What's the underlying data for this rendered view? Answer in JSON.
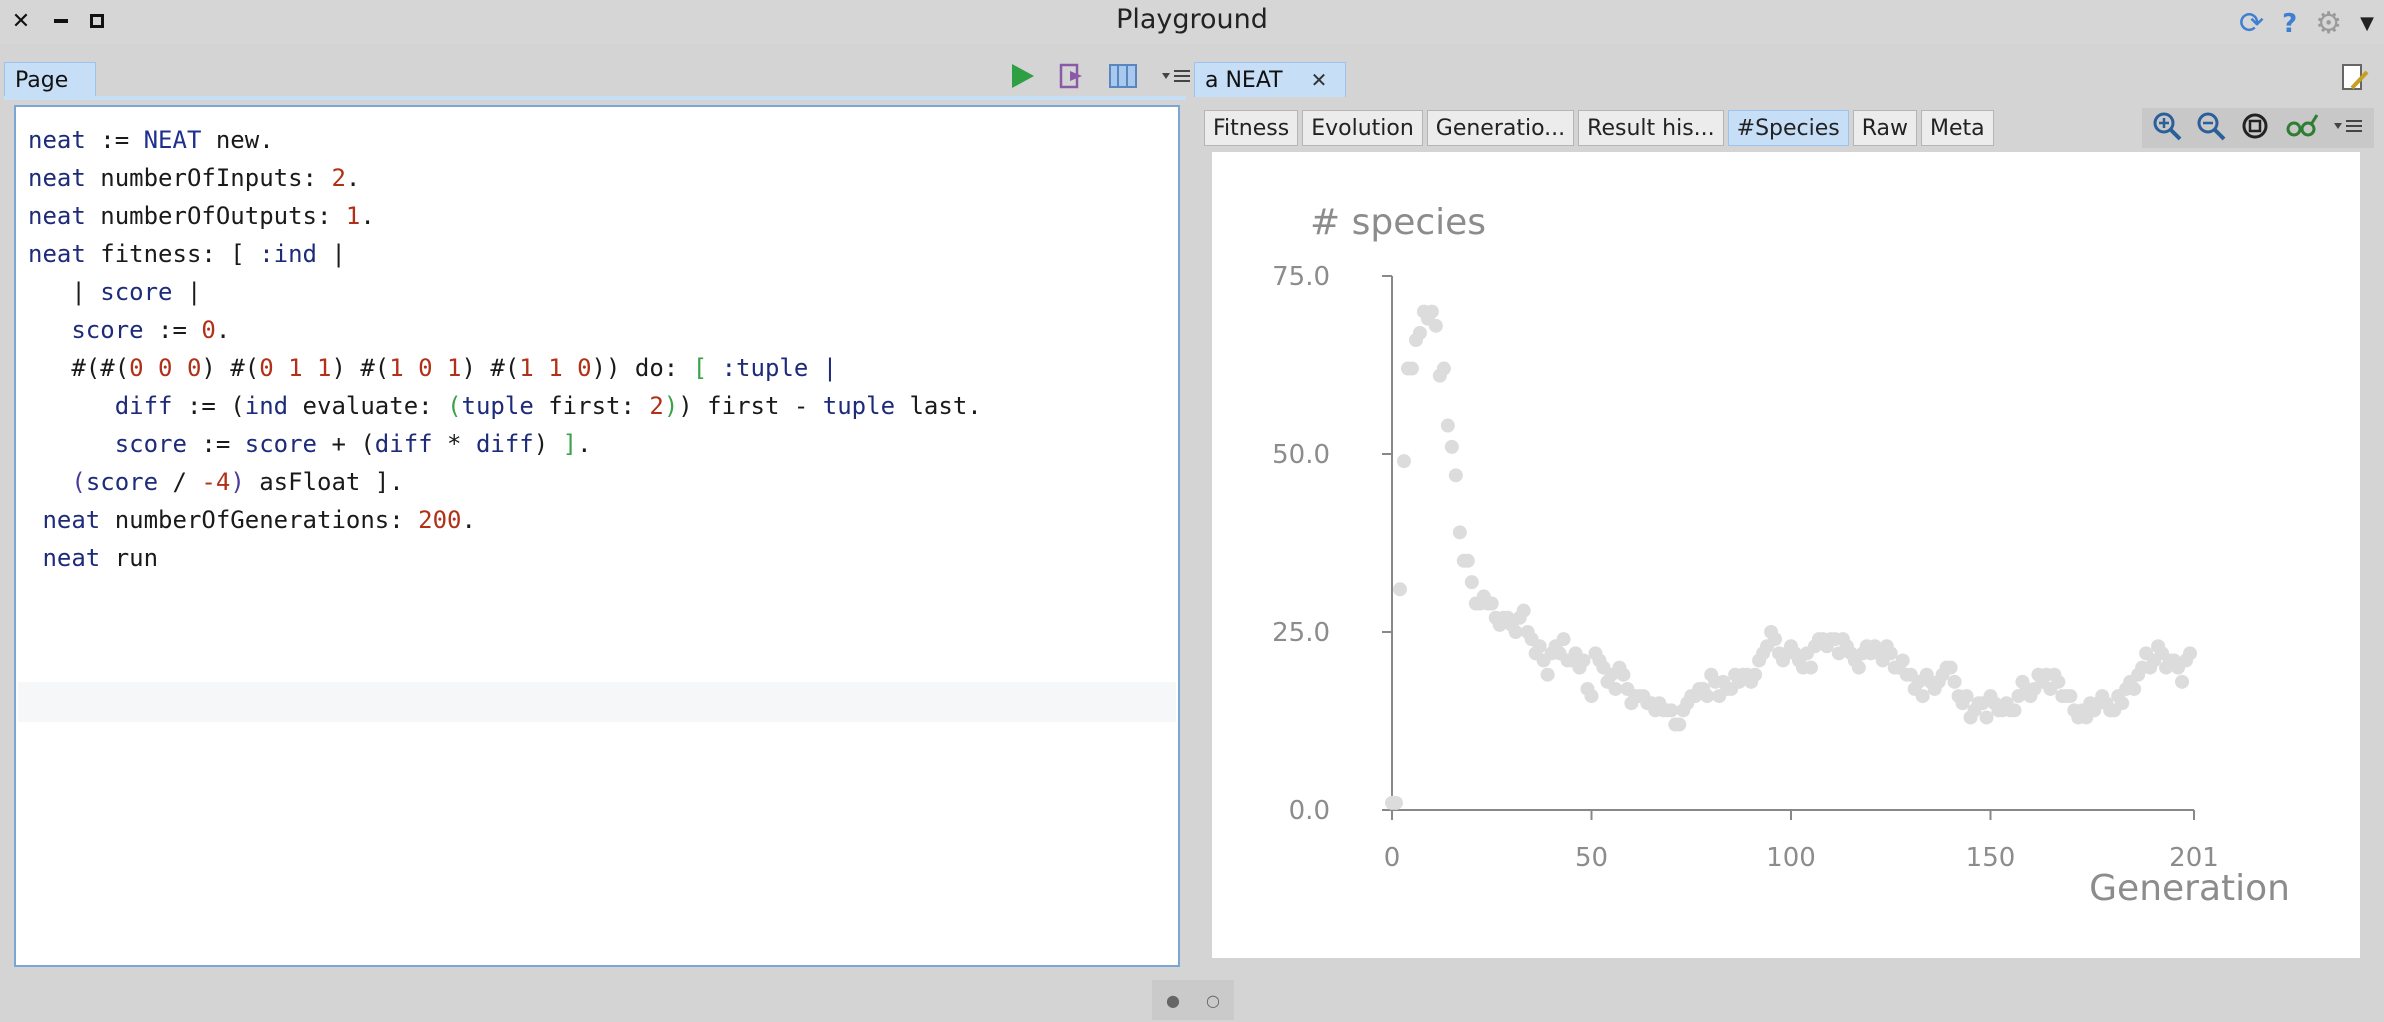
{
  "window": {
    "title": "Playground"
  },
  "left_pane": {
    "tab_label": "Page",
    "code_lines": [
      [
        {
          "t": "neat",
          "c": "v"
        },
        {
          "t": " := "
        },
        {
          "t": "NEAT",
          "c": "g"
        },
        {
          "t": " new."
        }
      ],
      [
        {
          "t": "neat",
          "c": "v"
        },
        {
          "t": " numberOfInputs: "
        },
        {
          "t": "2",
          "c": "n"
        },
        {
          "t": "."
        }
      ],
      [
        {
          "t": "neat",
          "c": "v"
        },
        {
          "t": " numberOfOutputs: "
        },
        {
          "t": "1",
          "c": "n"
        },
        {
          "t": "."
        }
      ],
      [
        {
          "t": "neat",
          "c": "v"
        },
        {
          "t": " fitness: [ "
        },
        {
          "t": ":ind",
          "c": "v"
        },
        {
          "t": " |"
        }
      ],
      [
        {
          "t": "   | "
        },
        {
          "t": "score",
          "c": "v"
        },
        {
          "t": " |"
        }
      ],
      [
        {
          "t": "   "
        },
        {
          "t": "score",
          "c": "v"
        },
        {
          "t": " := "
        },
        {
          "t": "0",
          "c": "n"
        },
        {
          "t": "."
        }
      ],
      [
        {
          "t": "   #(#("
        },
        {
          "t": "0 0 0",
          "c": "n"
        },
        {
          "t": ") #("
        },
        {
          "t": "0 1 1",
          "c": "n"
        },
        {
          "t": ") #("
        },
        {
          "t": "1 0 1",
          "c": "n"
        },
        {
          "t": ") #("
        },
        {
          "t": "1 1 0",
          "c": "n"
        },
        {
          "t": ")) do: "
        },
        {
          "t": "[",
          "c": "b"
        },
        {
          "t": " "
        },
        {
          "t": ":tuple",
          "c": "v"
        },
        {
          "t": " "
        },
        {
          "t": "|",
          "c": "v"
        }
      ],
      [
        {
          "t": "      "
        },
        {
          "t": "diff",
          "c": "v"
        },
        {
          "t": " := ("
        },
        {
          "t": "ind",
          "c": "v"
        },
        {
          "t": " evaluate: "
        },
        {
          "t": "(",
          "c": "b"
        },
        {
          "t": "tuple",
          "c": "v"
        },
        {
          "t": " first: "
        },
        {
          "t": "2",
          "c": "n"
        },
        {
          "t": ")",
          "c": "b"
        },
        {
          "t": ") first - "
        },
        {
          "t": "tuple",
          "c": "v"
        },
        {
          "t": " last."
        }
      ],
      [
        {
          "t": "      "
        },
        {
          "t": "score",
          "c": "v"
        },
        {
          "t": " := "
        },
        {
          "t": "score",
          "c": "v"
        },
        {
          "t": " + ("
        },
        {
          "t": "diff",
          "c": "v"
        },
        {
          "t": " * "
        },
        {
          "t": "diff",
          "c": "v"
        },
        {
          "t": ") "
        },
        {
          "t": "]",
          "c": "b"
        },
        {
          "t": "."
        }
      ],
      [
        {
          "t": "   "
        },
        {
          "t": "(",
          "c": "p"
        },
        {
          "t": "score",
          "c": "v"
        },
        {
          "t": " / "
        },
        {
          "t": "-4",
          "c": "n"
        },
        {
          "t": ")",
          "c": "p"
        },
        {
          "t": " asFloat ]."
        }
      ],
      [
        {
          "t": " "
        },
        {
          "t": "neat",
          "c": "v"
        },
        {
          "t": " numberOfGenerations: "
        },
        {
          "t": "200",
          "c": "n"
        },
        {
          "t": "."
        }
      ],
      [
        {
          "t": " "
        },
        {
          "t": "neat",
          "c": "v"
        },
        {
          "t": " run"
        }
      ]
    ]
  },
  "right_pane": {
    "tab_label": "a NEAT",
    "subtabs": [
      "Fitness",
      "Evolution",
      "Generatio...",
      "Result his...",
      "#Species",
      "Raw",
      "Meta"
    ],
    "active_subtab": "#Species"
  },
  "chart_data": {
    "type": "scatter",
    "title": "# species",
    "xlabel": "Generation",
    "ylabel": "",
    "xlim": [
      0,
      201
    ],
    "ylim": [
      0,
      75
    ],
    "x_ticks": [
      "0",
      "50",
      "100",
      "150",
      "201"
    ],
    "y_ticks": [
      "0.0",
      "25.0",
      "50.0",
      "75.0"
    ],
    "color": "#dcdcdc",
    "y": [
      1,
      1,
      31,
      49,
      62,
      62,
      66,
      67,
      70,
      69,
      70,
      68,
      61,
      62,
      54,
      51,
      47,
      39,
      35,
      35,
      32,
      29,
      29,
      30,
      29,
      29,
      27,
      26,
      27,
      27,
      26,
      25,
      27,
      28,
      25,
      24,
      22,
      23,
      21,
      19,
      22,
      23,
      22,
      24,
      21,
      21,
      22,
      20,
      21,
      17,
      16,
      22,
      21,
      20,
      18,
      19,
      17,
      20,
      19,
      17,
      15,
      16,
      16,
      16,
      15,
      15,
      14,
      15,
      14,
      14,
      14,
      12,
      12,
      14,
      15,
      16,
      16,
      17,
      17,
      16,
      19,
      18,
      16,
      18,
      17,
      17,
      19,
      18,
      19,
      19,
      18,
      19,
      21,
      22,
      23,
      25,
      24,
      22,
      21,
      22,
      23,
      22,
      21,
      20,
      22,
      20,
      23,
      24,
      24,
      23,
      24,
      24,
      22,
      24,
      23,
      22,
      21,
      20,
      22,
      23,
      22,
      23,
      22,
      21,
      23,
      22,
      20,
      20,
      21,
      19,
      19,
      17,
      18,
      16,
      19,
      18,
      17,
      18,
      19,
      20,
      20,
      18,
      16,
      15,
      16,
      13,
      14,
      15,
      15,
      13,
      16,
      15,
      14,
      14,
      15,
      14,
      14,
      16,
      18,
      17,
      16,
      17,
      19,
      18,
      19,
      17,
      19,
      18,
      16,
      16,
      16,
      14,
      13,
      14,
      13,
      15,
      14,
      15,
      16,
      15,
      14,
      14,
      16,
      15,
      17,
      18,
      17,
      19,
      20,
      22,
      20,
      21,
      23,
      22,
      20,
      21,
      21,
      20,
      18,
      21,
      22
    ]
  }
}
